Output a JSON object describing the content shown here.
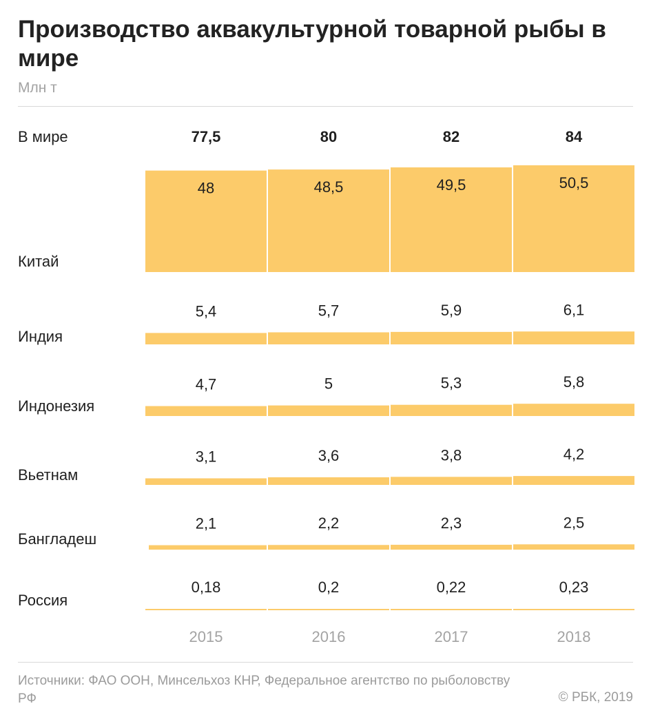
{
  "title": "Производство аквакультурной товарной рыбы в мире",
  "subtitle": "Млн т",
  "source": "Источники: ФАО ООН, Минсельхоз КНР, Федеральное агентство по рыболовству РФ",
  "copyright": "© РБК, 2019",
  "colors": {
    "bar": "#fccb6a",
    "text": "#1f1f1f",
    "year": "#a3a3a3"
  },
  "chart_data": {
    "type": "bar",
    "x": [
      "2015",
      "2016",
      "2017",
      "2018"
    ],
    "total": {
      "name": "В мире",
      "values": [
        "77,5",
        "80",
        "82",
        "84"
      ]
    },
    "series": [
      {
        "name": "Китай",
        "values": [
          48,
          48.5,
          49.5,
          50.5
        ],
        "labels": [
          "48",
          "48,5",
          "49,5",
          "50,5"
        ]
      },
      {
        "name": "Индия",
        "values": [
          5.4,
          5.7,
          5.9,
          6.1
        ],
        "labels": [
          "5,4",
          "5,7",
          "5,9",
          "6,1"
        ]
      },
      {
        "name": "Индонезия",
        "values": [
          4.7,
          5,
          5.3,
          5.8
        ],
        "labels": [
          "4,7",
          "5",
          "5,3",
          "5,8"
        ]
      },
      {
        "name": "Вьетнам",
        "values": [
          3.1,
          3.6,
          3.8,
          4.2
        ],
        "labels": [
          "3,1",
          "3,6",
          "3,8",
          "4,2"
        ]
      },
      {
        "name": "Бангладеш",
        "values": [
          2.1,
          2.2,
          2.3,
          2.5
        ],
        "labels": [
          "2,1",
          "2,2",
          "2,3",
          "2,5"
        ]
      },
      {
        "name": "Россия",
        "values": [
          0.18,
          0.2,
          0.22,
          0.23
        ],
        "labels": [
          "0,18",
          "0,2",
          "0,22",
          "0,23"
        ]
      }
    ]
  }
}
